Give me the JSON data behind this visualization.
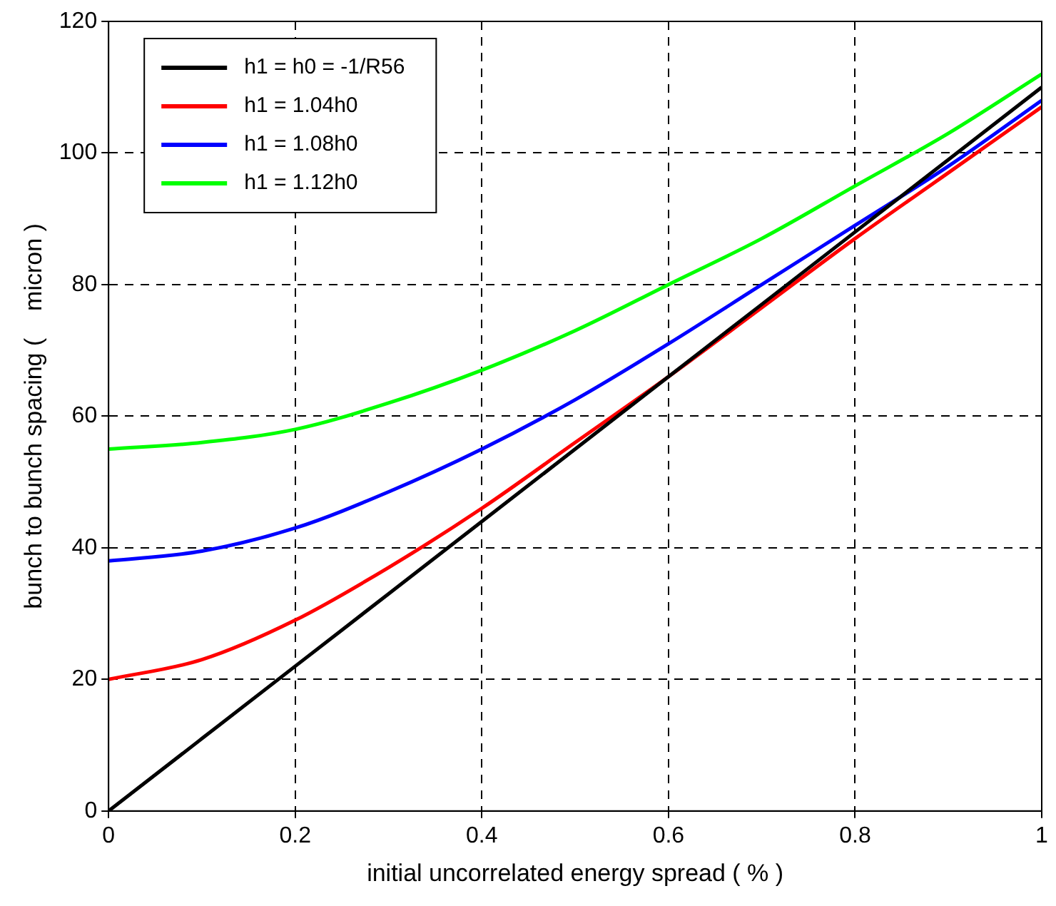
{
  "chart_data": {
    "type": "line",
    "xlabel": "initial uncorrelated energy spread ( % )",
    "ylabel": "bunch to bunch spacing (    micron )",
    "x": [
      0,
      0.1,
      0.2,
      0.3,
      0.4,
      0.5,
      0.6,
      0.7,
      0.8,
      0.9,
      1
    ],
    "series": [
      {
        "name": "h1 = h0 = -1/R56",
        "color": "#000000",
        "values": [
          0,
          11,
          22,
          33,
          44,
          55,
          66,
          77,
          88,
          99,
          110
        ]
      },
      {
        "name": "h1 = 1.04h0",
        "color": "#ff0000",
        "values": [
          20,
          23,
          29,
          37,
          46,
          56,
          66,
          76.5,
          87,
          97,
          107
        ]
      },
      {
        "name": "h1 = 1.08h0",
        "color": "#0000ff",
        "values": [
          38,
          39.5,
          43,
          48.5,
          55,
          62.5,
          71,
          80,
          89,
          98,
          108
        ]
      },
      {
        "name": "h1 = 1.12h0",
        "color": "#00ff00",
        "values": [
          55,
          56,
          58,
          62,
          67,
          73,
          80,
          87,
          95,
          103,
          112
        ]
      }
    ],
    "xlim": [
      0,
      1
    ],
    "xticks": [
      0,
      0.2,
      0.4,
      0.6,
      0.8,
      1
    ],
    "ylim": [
      0,
      120
    ],
    "yticks": [
      0,
      20,
      40,
      60,
      80,
      100,
      120
    ],
    "grid": true,
    "legend": "top left",
    "marker": "none",
    "line_style": "solid"
  }
}
